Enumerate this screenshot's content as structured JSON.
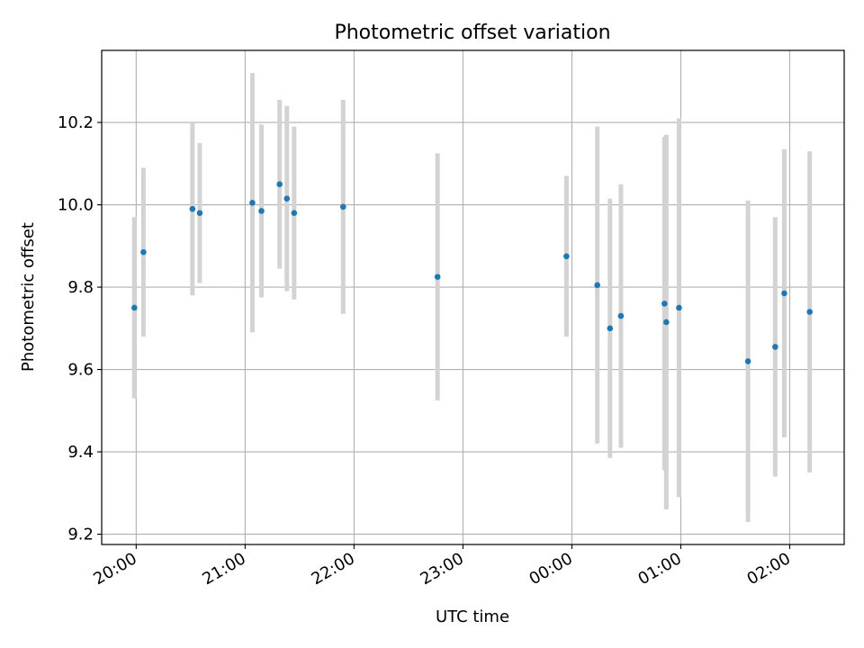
{
  "chart_data": {
    "type": "scatter",
    "title": "Photometric offset variation",
    "xlabel": "UTC time",
    "ylabel": "Photometric offset",
    "x_ticks": [
      "20:00",
      "21:00",
      "22:00",
      "23:00",
      "00:00",
      "01:00",
      "02:00"
    ],
    "y_ticks": [
      9.2,
      9.4,
      9.6,
      9.8,
      10.0,
      10.2
    ],
    "y_tick_labels": [
      "9.2",
      "9.4",
      "9.6",
      "9.8",
      "10.0",
      "10.2"
    ],
    "xlim": [
      "19:41",
      "02:30"
    ],
    "ylim": [
      9.175,
      10.375
    ],
    "grid": true,
    "marker_color": "#1f77b4",
    "errorbar_color": "#d3d3d3",
    "points": [
      {
        "time": "19:59",
        "y": 9.75,
        "yerr": 0.22
      },
      {
        "time": "20:04",
        "y": 9.885,
        "yerr": 0.205
      },
      {
        "time": "20:31",
        "y": 9.99,
        "yerr": 0.21
      },
      {
        "time": "20:35",
        "y": 9.98,
        "yerr": 0.17
      },
      {
        "time": "21:04",
        "y": 10.005,
        "yerr": 0.315
      },
      {
        "time": "21:09",
        "y": 9.985,
        "yerr": 0.21
      },
      {
        "time": "21:19",
        "y": 10.05,
        "yerr": 0.205
      },
      {
        "time": "21:23",
        "y": 10.015,
        "yerr": 0.225
      },
      {
        "time": "21:27",
        "y": 9.98,
        "yerr": 0.21
      },
      {
        "time": "21:54",
        "y": 9.995,
        "yerr": 0.26
      },
      {
        "time": "22:46",
        "y": 9.825,
        "yerr": 0.3
      },
      {
        "time": "23:57",
        "y": 9.875,
        "yerr": 0.195
      },
      {
        "time": "00:14",
        "y": 9.805,
        "yerr": 0.385
      },
      {
        "time": "00:21",
        "y": 9.7,
        "yerr": 0.315
      },
      {
        "time": "00:27",
        "y": 9.73,
        "yerr": 0.32
      },
      {
        "time": "00:51",
        "y": 9.76,
        "yerr": 0.405
      },
      {
        "time": "00:52",
        "y": 9.715,
        "yerr": 0.455
      },
      {
        "time": "00:59",
        "y": 9.75,
        "yerr": 0.46
      },
      {
        "time": "01:37",
        "y": 9.62,
        "yerr": 0.39
      },
      {
        "time": "01:52",
        "y": 9.655,
        "yerr": 0.315
      },
      {
        "time": "01:57",
        "y": 9.785,
        "yerr": 0.35
      },
      {
        "time": "02:11",
        "y": 9.74,
        "yerr": 0.39
      }
    ]
  }
}
